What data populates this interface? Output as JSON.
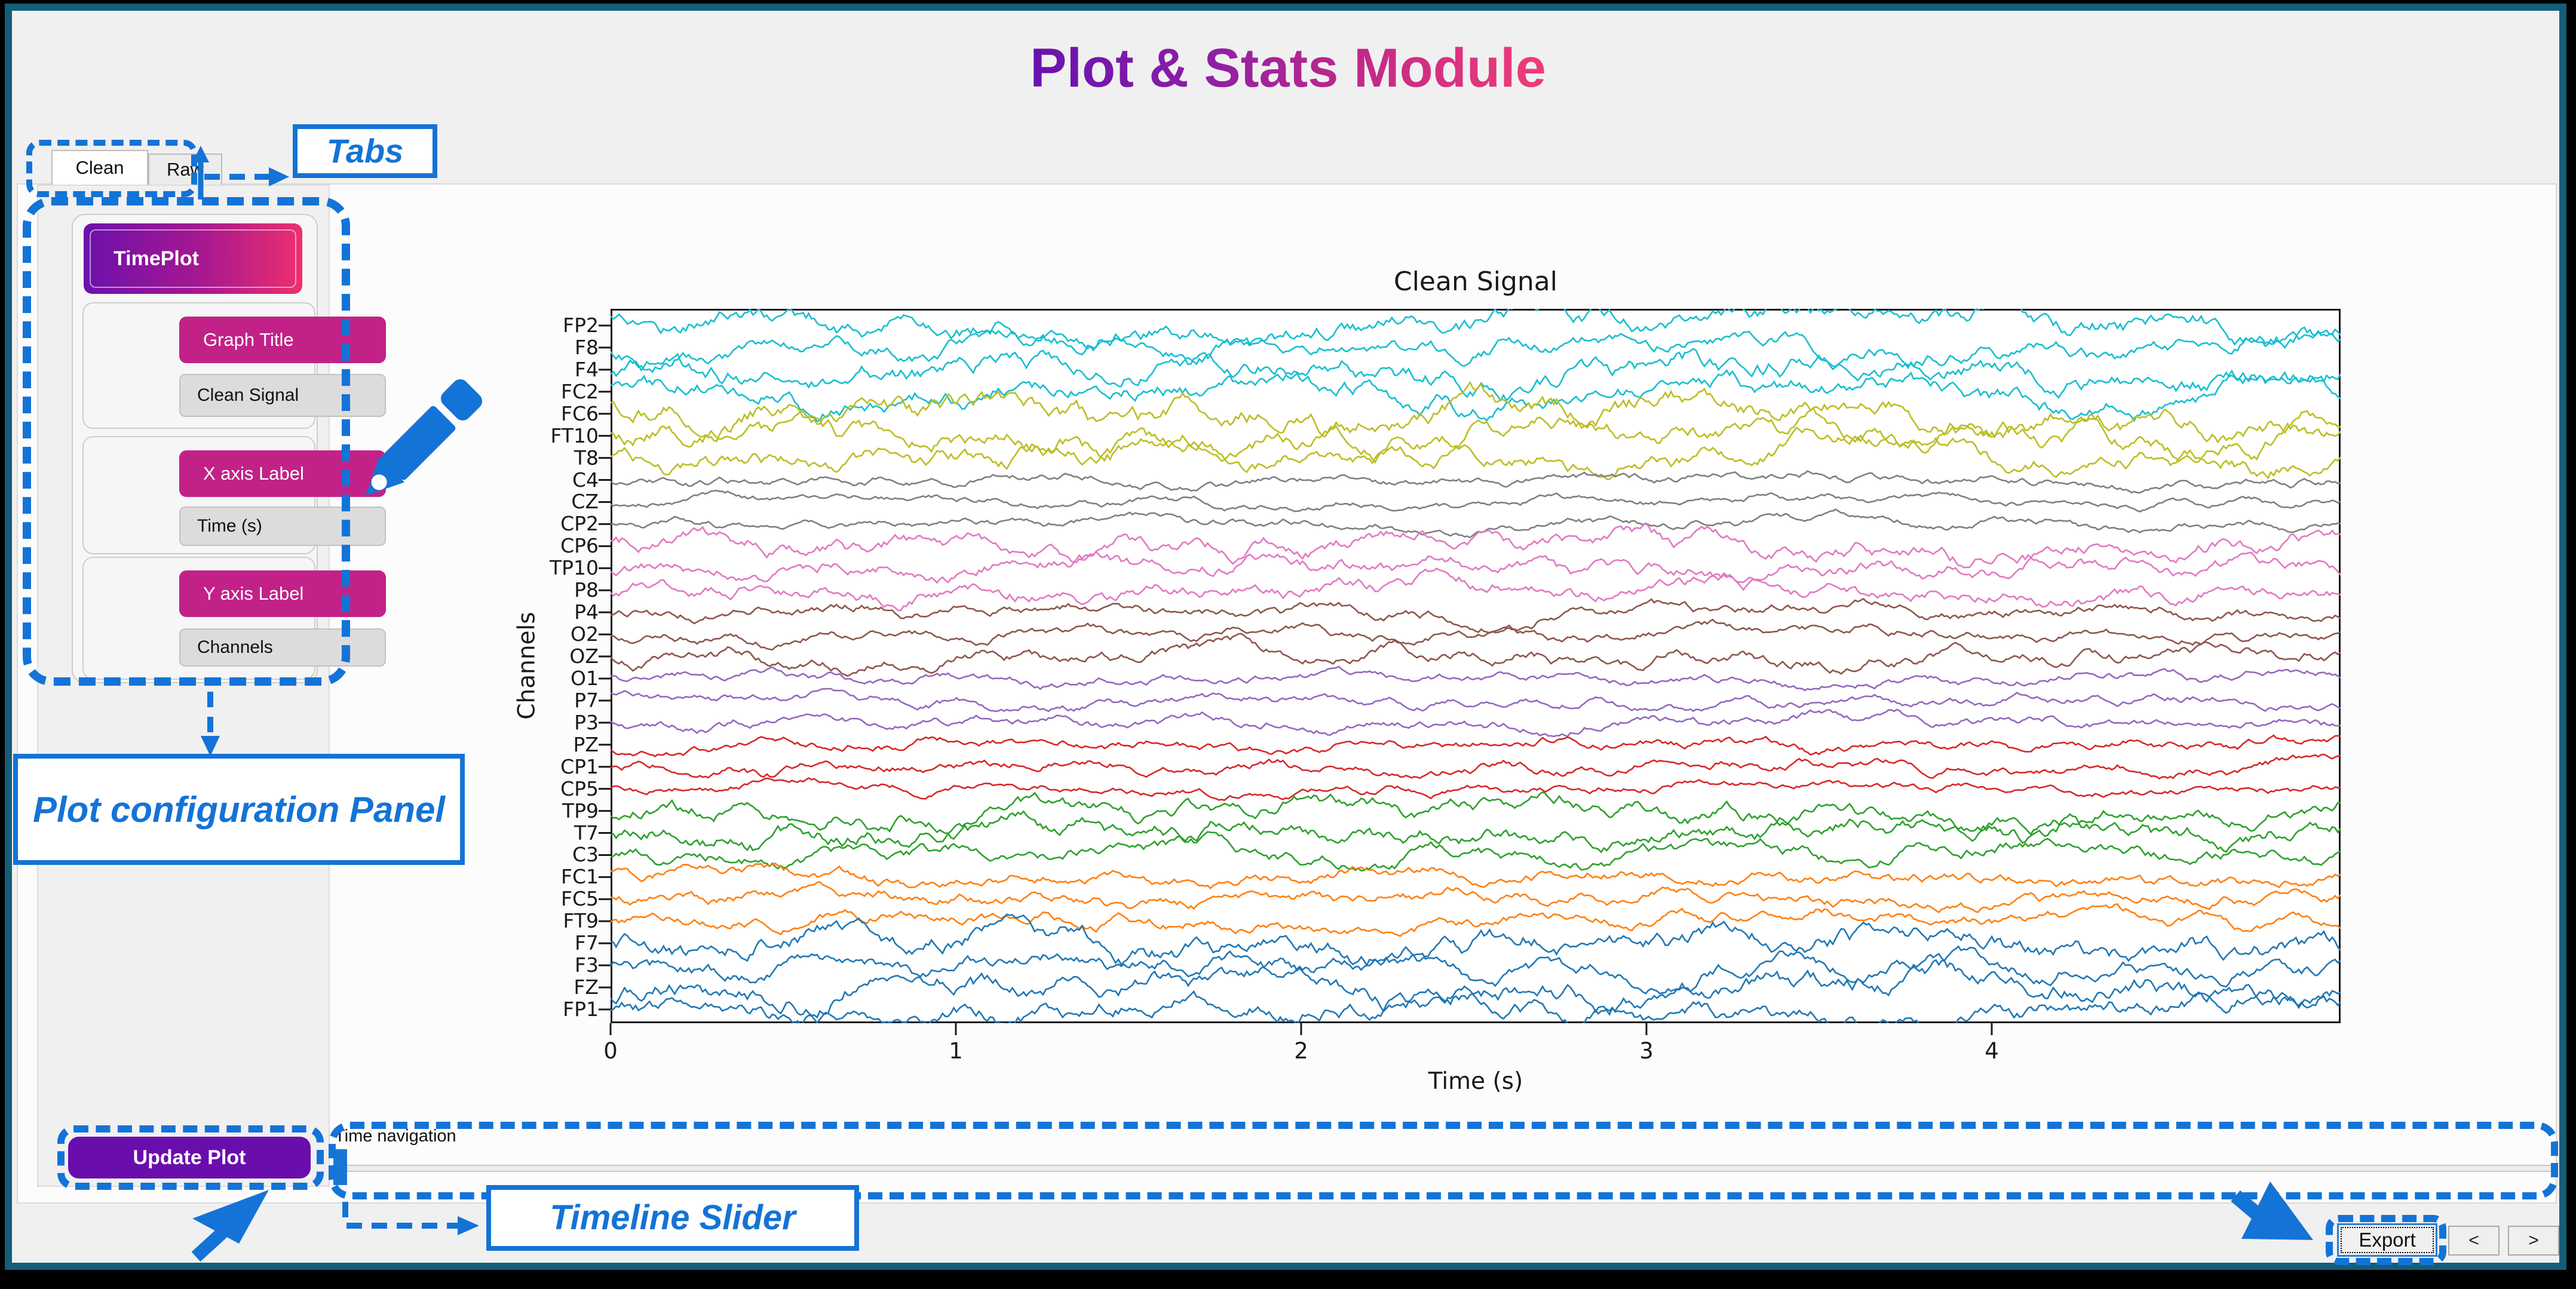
{
  "title": "Plot & Stats Module",
  "tabs": {
    "clean": "Clean",
    "raw": "Raw"
  },
  "panel": {
    "type_button": "TimePlot",
    "graph_title": {
      "label": "Graph Title",
      "value": "Clean Signal"
    },
    "x_axis": {
      "label": "X axis Label",
      "value": "Time (s)"
    },
    "y_axis": {
      "label": "Y axis Label",
      "value": "Channels"
    },
    "update_button": "Update Plot"
  },
  "timeline": {
    "label": "Time navigation"
  },
  "footer": {
    "export": "Export",
    "prev": "<",
    "next": ">"
  },
  "annotations": {
    "tabs_label": "Tabs",
    "panel_label": "Plot configuration Panel",
    "slider_label": "Timeline Slider",
    "color": "#1473d6"
  },
  "chart_data": {
    "type": "line",
    "title": "Clean Signal",
    "xlabel": "Time (s)",
    "ylabel": "Channels",
    "xlim": [
      0,
      5
    ],
    "x_ticks": [
      0,
      1,
      2,
      3,
      4
    ],
    "grid": false,
    "legend": false,
    "description": "32-channel EEG traces stacked vertically, one colored waveform per channel",
    "channels_top_to_bottom": [
      {
        "name": "FP2",
        "color": "#17becf"
      },
      {
        "name": "F8",
        "color": "#17becf"
      },
      {
        "name": "F4",
        "color": "#17becf"
      },
      {
        "name": "FC2",
        "color": "#17becf"
      },
      {
        "name": "FC6",
        "color": "#bcbd22"
      },
      {
        "name": "FT10",
        "color": "#bcbd22"
      },
      {
        "name": "T8",
        "color": "#bcbd22"
      },
      {
        "name": "C4",
        "color": "#7f7f7f"
      },
      {
        "name": "CZ",
        "color": "#7f7f7f"
      },
      {
        "name": "CP2",
        "color": "#7f7f7f"
      },
      {
        "name": "CP6",
        "color": "#e377c2"
      },
      {
        "name": "TP10",
        "color": "#e377c2"
      },
      {
        "name": "P8",
        "color": "#e377c2"
      },
      {
        "name": "P4",
        "color": "#8c564b"
      },
      {
        "name": "O2",
        "color": "#8c564b"
      },
      {
        "name": "OZ",
        "color": "#8c564b"
      },
      {
        "name": "O1",
        "color": "#9467bd"
      },
      {
        "name": "P7",
        "color": "#9467bd"
      },
      {
        "name": "P3",
        "color": "#9467bd"
      },
      {
        "name": "PZ",
        "color": "#d62728"
      },
      {
        "name": "CP1",
        "color": "#d62728"
      },
      {
        "name": "CP5",
        "color": "#d62728"
      },
      {
        "name": "TP9",
        "color": "#2ca02c"
      },
      {
        "name": "T7",
        "color": "#2ca02c"
      },
      {
        "name": "C3",
        "color": "#2ca02c"
      },
      {
        "name": "FC1",
        "color": "#ff7f0e"
      },
      {
        "name": "FC5",
        "color": "#ff7f0e"
      },
      {
        "name": "FT9",
        "color": "#ff7f0e"
      },
      {
        "name": "F7",
        "color": "#1f77b4"
      },
      {
        "name": "F3",
        "color": "#1f77b4"
      },
      {
        "name": "FZ",
        "color": "#1f77b4"
      },
      {
        "name": "FP1",
        "color": "#1f77b4"
      }
    ]
  }
}
